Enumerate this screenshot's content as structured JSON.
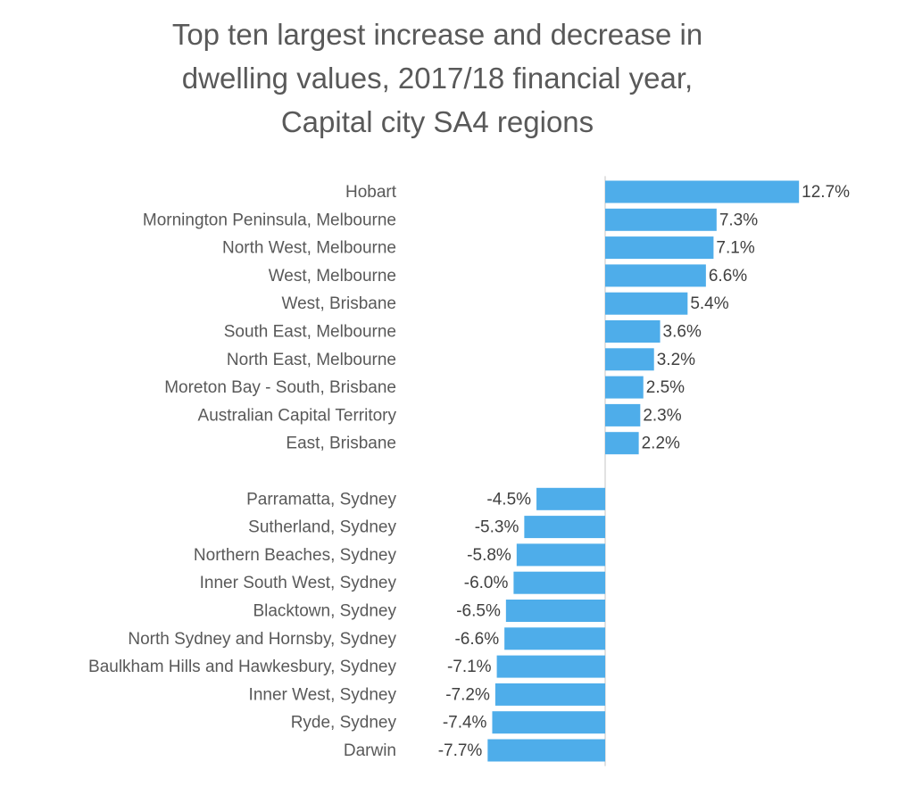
{
  "chart_data": {
    "type": "bar",
    "orientation": "horizontal",
    "title": "Top ten largest increase and decrease in\ndwelling values, 2017/18 financial year,\nCapital city SA4 regions",
    "xlabel": "",
    "ylabel": "",
    "grid": false,
    "legend": "none",
    "bar_color": "#4EADEA",
    "axis_color": "#d9d9d9",
    "categories": [
      "Hobart",
      "Mornington Peninsula, Melbourne",
      "North West, Melbourne",
      "West, Melbourne",
      "West, Brisbane",
      "South East, Melbourne",
      "North East, Melbourne",
      "Moreton Bay - South, Brisbane",
      "Australian Capital Territory",
      "East, Brisbane",
      "",
      "Parramatta, Sydney",
      "Sutherland, Sydney",
      "Northern Beaches, Sydney",
      "Inner South West, Sydney",
      "Blacktown, Sydney",
      "North Sydney and Hornsby, Sydney",
      "Baulkham Hills and Hawkesbury, Sydney",
      "Inner West, Sydney",
      "Ryde, Sydney",
      "Darwin"
    ],
    "values": [
      12.7,
      7.3,
      7.1,
      6.6,
      5.4,
      3.6,
      3.2,
      2.5,
      2.3,
      2.2,
      null,
      -4.5,
      -5.3,
      -5.8,
      -6.0,
      -6.5,
      -6.6,
      -7.1,
      -7.2,
      -7.4,
      -7.7
    ],
    "labels": [
      "12.7%",
      "7.3%",
      "7.1%",
      "6.6%",
      "5.4%",
      "3.6%",
      "3.2%",
      "2.5%",
      "2.3%",
      "2.2%",
      "",
      "-4.5%",
      "-5.3%",
      "-5.8%",
      "-6.0%",
      "-6.5%",
      "-6.6%",
      "-7.1%",
      "-7.2%",
      "-7.4%",
      "-7.7%"
    ]
  }
}
